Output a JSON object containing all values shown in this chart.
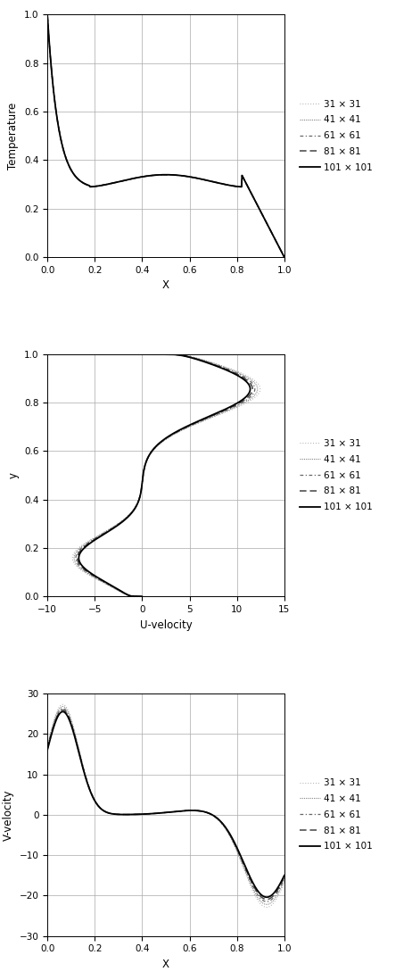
{
  "legend_labels": [
    "31 × 31",
    "41 × 41",
    "61 × 61",
    "81 × 81",
    "101 × 101"
  ],
  "line_styles": [
    "dotted",
    "dotted2",
    "dashdot",
    "dashed",
    "solid"
  ],
  "line_widths": [
    0.7,
    0.8,
    0.9,
    1.1,
    1.3
  ],
  "line_colors": [
    "#aaaaaa",
    "#888888",
    "#666666",
    "#444444",
    "#000000"
  ],
  "plot1": {
    "xlabel": "X",
    "ylabel": "Temperature",
    "xlim": [
      0,
      1
    ],
    "ylim": [
      0,
      1
    ],
    "xticks": [
      0,
      0.2,
      0.4,
      0.6,
      0.8,
      1.0
    ],
    "yticks": [
      0,
      0.2,
      0.4,
      0.6,
      0.8,
      1.0
    ]
  },
  "plot2": {
    "xlabel": "U-velocity",
    "ylabel": "y",
    "xlim": [
      -10,
      15
    ],
    "ylim": [
      0,
      1
    ],
    "xticks": [
      -10,
      -5,
      0,
      5,
      10,
      15
    ],
    "yticks": [
      0,
      0.2,
      0.4,
      0.6,
      0.8,
      1.0
    ]
  },
  "plot3": {
    "xlabel": "X",
    "ylabel": "V-velocity",
    "xlim": [
      0,
      1
    ],
    "ylim": [
      -30,
      30
    ],
    "xticks": [
      0,
      0.2,
      0.4,
      0.6,
      0.8,
      1.0
    ],
    "yticks": [
      -30,
      -20,
      -10,
      0,
      10,
      20,
      30
    ]
  },
  "temp_spread": [
    0.008,
    0.005,
    0.003,
    0.001,
    0.0
  ],
  "u_spread": [
    1.5,
    1.1,
    0.7,
    0.35,
    0.0
  ],
  "v_pos_spread": [
    1.8,
    1.3,
    0.8,
    0.4,
    0.0
  ],
  "v_neg_spread": [
    2.5,
    1.8,
    1.1,
    0.55,
    0.0
  ]
}
